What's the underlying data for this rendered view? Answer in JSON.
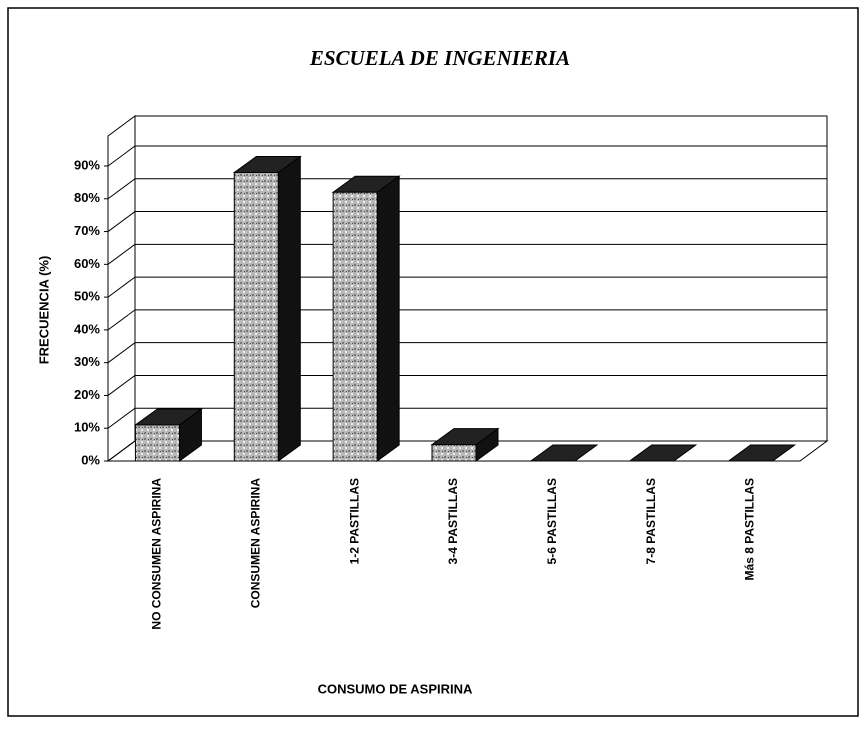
{
  "chart_data": {
    "type": "bar",
    "title": "ESCUELA DE INGENIERIA",
    "x_label": "CONSUMO DE ASPIRINA",
    "y_label": "FRECUENCIA (%)",
    "categories": [
      "NO CONSUMEN ASPIRINA",
      "CONSUMEN ASPIRINA",
      "1-2 PASTILLAS",
      "3-4 PASTILLAS",
      "5-6 PASTILLAS",
      "7-8 PASTILLAS",
      "Más 8 PASTILLAS"
    ],
    "values": [
      11,
      88,
      82,
      5,
      0,
      0,
      0
    ],
    "color": "#b8b8b8",
    "ylim": [
      0,
      90
    ],
    "yticks": [
      {
        "value": 0,
        "label": "0%"
      },
      {
        "value": 10,
        "label": "10%"
      },
      {
        "value": 20,
        "label": "20%"
      },
      {
        "value": 30,
        "label": "30%"
      },
      {
        "value": 40,
        "label": "40%"
      },
      {
        "value": 50,
        "label": "50%"
      },
      {
        "value": 60,
        "label": "60%"
      },
      {
        "value": 70,
        "label": "70%"
      },
      {
        "value": 80,
        "label": "80%"
      },
      {
        "value": 90,
        "label": "90%"
      }
    ],
    "grid": true
  }
}
